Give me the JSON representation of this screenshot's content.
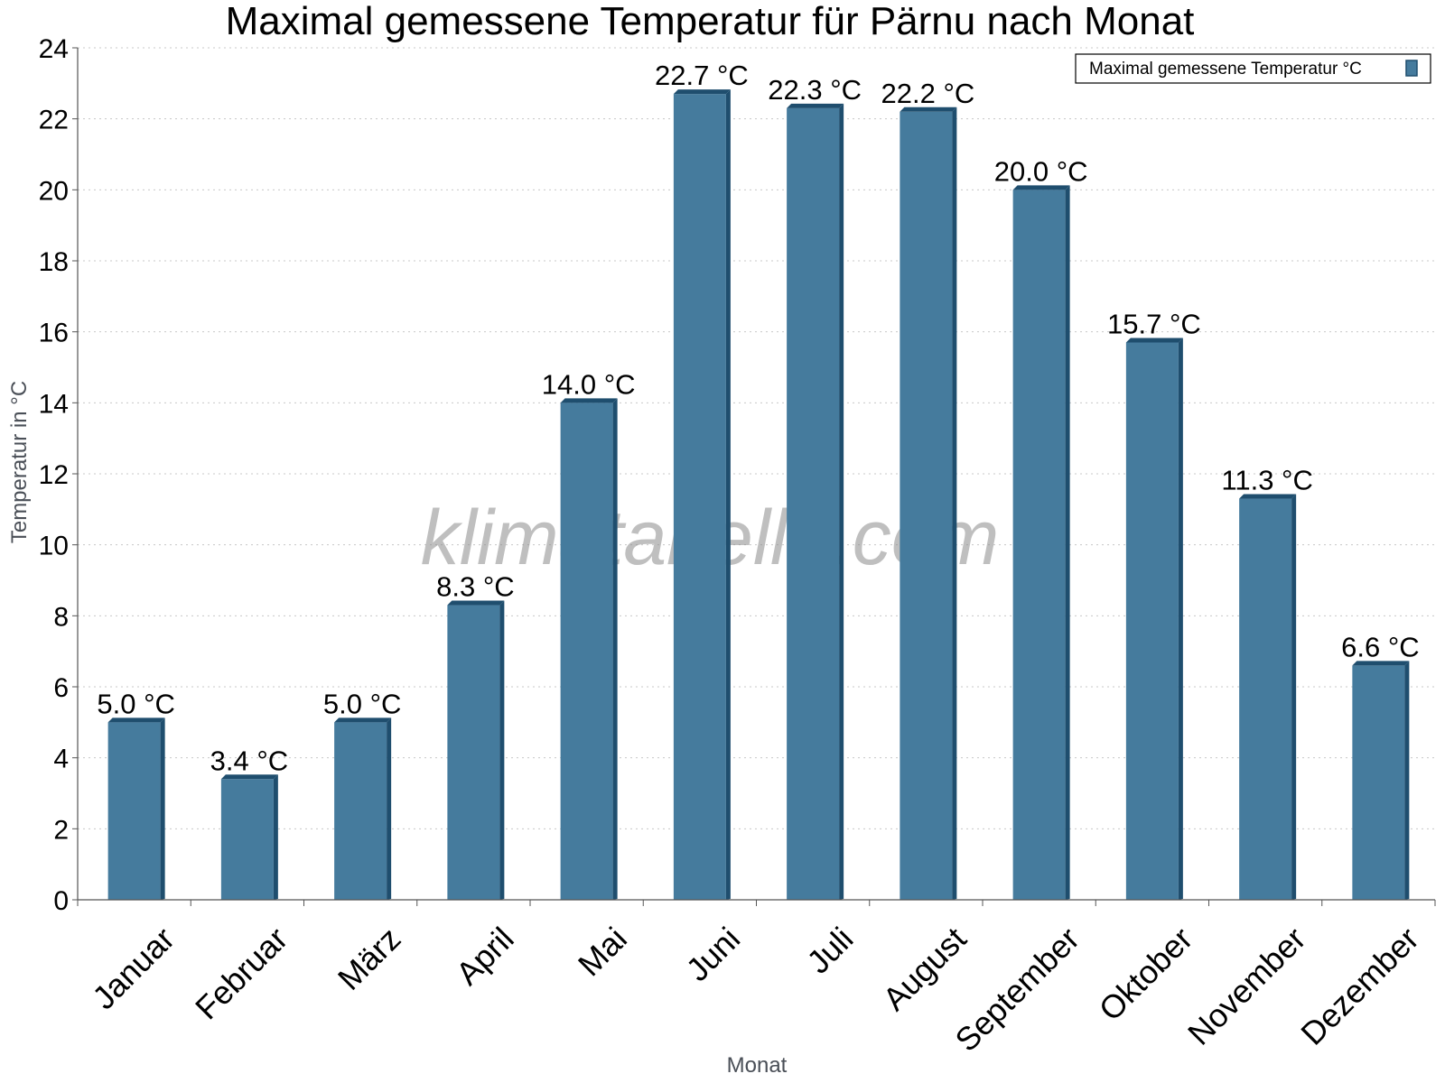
{
  "chart_data": {
    "type": "bar",
    "title": "Maximal gemessene Temperatur für Pärnu nach Monat",
    "xlabel": "Monat",
    "ylabel": "Temperatur in °C",
    "ylim": [
      0,
      24
    ],
    "yticks": [
      0,
      2,
      4,
      6,
      8,
      10,
      12,
      14,
      16,
      18,
      20,
      22,
      24
    ],
    "grid": true,
    "legend_position": "top-right",
    "categories": [
      "Januar",
      "Februar",
      "März",
      "April",
      "Mai",
      "Juni",
      "Juli",
      "August",
      "September",
      "Oktober",
      "November",
      "Dezember"
    ],
    "series": [
      {
        "name": "Maximal gemessene Temperatur °C",
        "color": "#457b9d",
        "values": [
          5.0,
          3.4,
          5.0,
          8.3,
          14.0,
          22.7,
          22.3,
          22.2,
          20.0,
          15.7,
          11.3,
          6.6
        ],
        "data_labels": [
          "5.0 °C",
          "3.4 °C",
          "5.0 °C",
          "8.3 °C",
          "14.0 °C",
          "22.7 °C",
          "22.3 °C",
          "22.2 °C",
          "20.0 °C",
          "15.7 °C",
          "11.3 °C",
          "6.6 °C"
        ]
      }
    ],
    "watermark": "klimatabelle.com"
  }
}
